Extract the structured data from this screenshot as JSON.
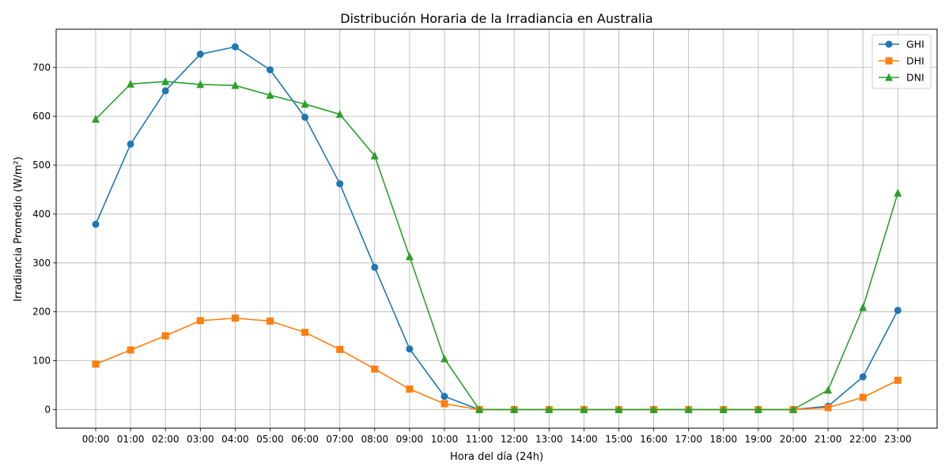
{
  "chart_data": {
    "type": "line",
    "title": "Distribución Horaria de la Irradiancia en Australia",
    "xlabel": "Hora del día (24h)",
    "ylabel": "Irradiancia Promedio (W/m²)",
    "categories": [
      "00:00",
      "01:00",
      "02:00",
      "03:00",
      "04:00",
      "05:00",
      "06:00",
      "07:00",
      "08:00",
      "09:00",
      "10:00",
      "11:00",
      "12:00",
      "13:00",
      "14:00",
      "15:00",
      "16:00",
      "17:00",
      "18:00",
      "19:00",
      "20:00",
      "21:00",
      "22:00",
      "23:00"
    ],
    "ylim": [
      -38,
      778
    ],
    "yticks": [
      0,
      100,
      200,
      300,
      400,
      500,
      600,
      700
    ],
    "grid": true,
    "legend_position": "top-right",
    "series": [
      {
        "name": "GHI",
        "color": "#1f77b4",
        "marker": "circle",
        "values": [
          379,
          543,
          652,
          727,
          742,
          695,
          598,
          462,
          291,
          124,
          27,
          0,
          0,
          0,
          0,
          0,
          0,
          0,
          0,
          0,
          0,
          7,
          67,
          203
        ]
      },
      {
        "name": "DHI",
        "color": "#ff7f0e",
        "marker": "square",
        "values": [
          93,
          122,
          151,
          182,
          187,
          181,
          158,
          123,
          83,
          42,
          12,
          0,
          0,
          0,
          0,
          0,
          0,
          0,
          0,
          0,
          0,
          4,
          25,
          60
        ]
      },
      {
        "name": "DNI",
        "color": "#2ca02c",
        "marker": "triangle",
        "values": [
          594,
          666,
          671,
          665,
          663,
          643,
          625,
          604,
          519,
          313,
          104,
          0,
          0,
          0,
          0,
          0,
          0,
          0,
          0,
          0,
          0,
          40,
          209,
          443
        ]
      }
    ]
  }
}
